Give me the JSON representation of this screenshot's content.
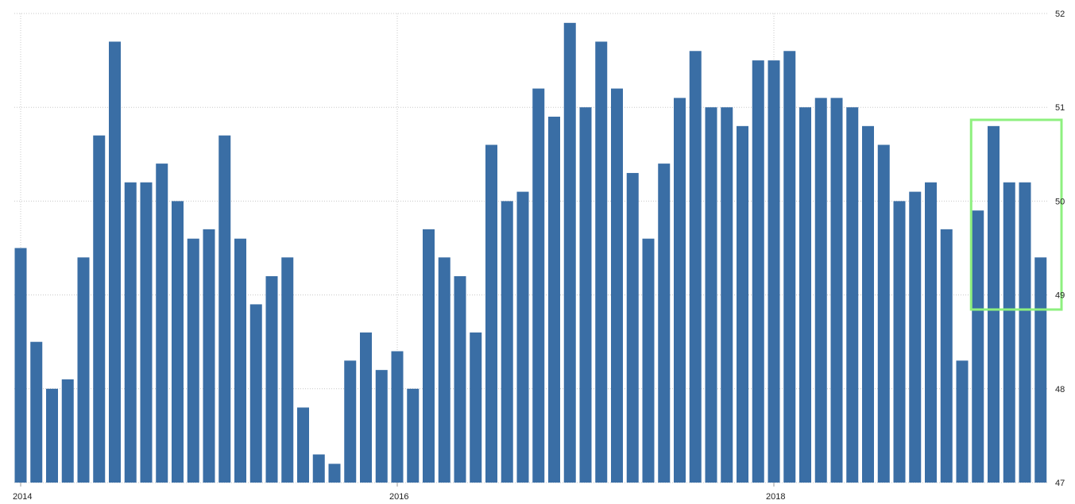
{
  "chart_data": {
    "type": "bar",
    "x_tick_labels": [
      "2014",
      "2016",
      "2018"
    ],
    "y_tick_labels": [
      "47",
      "48",
      "49",
      "50",
      "51",
      "52"
    ],
    "ylim": [
      47,
      52
    ],
    "grid": true,
    "y_axis_side": "right",
    "values": [
      49.5,
      48.5,
      48.0,
      48.1,
      49.4,
      50.7,
      51.7,
      50.2,
      50.2,
      50.4,
      50.0,
      49.6,
      49.7,
      50.7,
      49.6,
      48.9,
      49.2,
      49.4,
      47.8,
      47.3,
      47.2,
      48.3,
      48.6,
      48.2,
      48.4,
      48.0,
      49.7,
      49.4,
      49.2,
      48.6,
      50.6,
      50.0,
      50.1,
      51.2,
      50.9,
      51.9,
      51.0,
      51.7,
      51.2,
      50.3,
      49.6,
      50.4,
      51.1,
      51.6,
      51.0,
      51.0,
      50.8,
      51.5,
      51.5,
      51.6,
      51.0,
      51.1,
      51.1,
      51.0,
      50.8,
      50.6,
      50.0,
      50.1,
      50.2,
      49.7,
      48.3,
      49.9,
      50.8,
      50.2,
      50.2,
      49.4
    ],
    "highlight": {
      "from_index": 61,
      "to_index": 65,
      "color": "#8ef07f"
    },
    "colors": {
      "bar": "#3a6ea5",
      "grid": "#c8c8c8",
      "text": "#222222"
    }
  }
}
